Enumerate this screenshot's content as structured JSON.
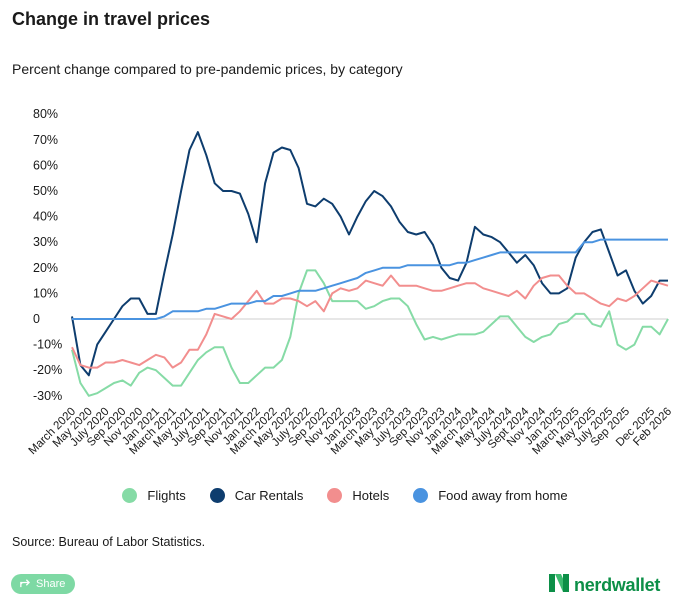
{
  "header": {
    "title": "Change in travel prices",
    "subtitle": "Percent change compared to pre-pandemic prices, by category"
  },
  "footer": {
    "source": "Source: Bureau of Labor Statistics.",
    "share_label": "Share",
    "share_icon": "share-icon",
    "logo_text": "nerdwallet",
    "logo_color": "#0c8f47"
  },
  "chart_data": {
    "type": "line",
    "ylim": [
      -30,
      80
    ],
    "y_ticks": [
      "80%",
      "70%",
      "60%",
      "50%",
      "40%",
      "30%",
      "20%",
      "10%",
      "0",
      "-10%",
      "-20%",
      "-30%"
    ],
    "y_tick_values": [
      80,
      70,
      60,
      50,
      40,
      30,
      20,
      10,
      0,
      -10,
      -20,
      -30
    ],
    "x_tick_labels": [
      "March 2020",
      "May 2020",
      "July 2020",
      "Sep 2020",
      "Nov 2020",
      "Jan 2021",
      "March 2021",
      "May 2021",
      "July 2021",
      "Sep 2021",
      "Nov 2021",
      "Jan 2022",
      "March 2022",
      "May 2022",
      "July 2022",
      "Sep 2022",
      "Nov 2022",
      "Jan 2023",
      "March 2023",
      "May 2023",
      "July 2023",
      "Sep 2023",
      "Nov 2023",
      "Jan 2024",
      "March 2024",
      "May 2024",
      "July 2024",
      "Sept 2024",
      "Nov 2024",
      "Jan 2025",
      "March 2025",
      "May 2025",
      "July 2025",
      "Sep 2025",
      "Dec 2025",
      "Feb 2026"
    ],
    "x_tick_index": [
      0,
      2,
      4,
      6,
      8,
      10,
      12,
      14,
      16,
      18,
      20,
      22,
      24,
      26,
      28,
      30,
      32,
      34,
      36,
      38,
      40,
      42,
      44,
      46,
      48,
      50,
      52,
      54,
      56,
      58,
      60,
      62,
      64,
      66,
      69,
      71
    ],
    "x_count": 72,
    "grid": false,
    "legend_position": "bottom",
    "series": [
      {
        "name": "Flights",
        "color": "#86dba6",
        "values": [
          -12,
          -25,
          -30,
          -29,
          -27,
          -25,
          -24,
          -26,
          -21,
          -19,
          -20,
          -23,
          -26,
          -26,
          -21,
          -16,
          -13,
          -11,
          -11,
          -19,
          -25,
          -25,
          -22,
          -19,
          -19,
          -16,
          -7,
          10,
          19,
          19,
          14,
          7,
          7,
          7,
          7,
          4,
          5,
          7,
          8,
          8,
          5,
          -2,
          -8,
          -7,
          -8,
          -7,
          -6,
          -6,
          -6,
          -5,
          -2,
          1,
          1,
          -3,
          -7,
          -9,
          -7,
          -6,
          -2,
          -1,
          2,
          2,
          -2,
          -3,
          3,
          -10,
          -12,
          -10,
          -3,
          -3,
          -6,
          0
        ]
      },
      {
        "name": "Car Rentals",
        "color": "#0e3d6e",
        "values": [
          1,
          -18,
          -22,
          -10,
          -5,
          0,
          5,
          8,
          8,
          2,
          2,
          18,
          33,
          50,
          66,
          73,
          64,
          53,
          50,
          50,
          49,
          41,
          30,
          53,
          65,
          67,
          66,
          59,
          45,
          44,
          47,
          45,
          40,
          33,
          40,
          46,
          50,
          48,
          44,
          38,
          34,
          33,
          34,
          29,
          20,
          16,
          15,
          22,
          36,
          33,
          32,
          30,
          26,
          22,
          25,
          21,
          14,
          10,
          10,
          12,
          24,
          30,
          34,
          35,
          26,
          17,
          19,
          11,
          6,
          9,
          15,
          15
        ]
      },
      {
        "name": "Hotels",
        "color": "#f28e8e",
        "values": [
          -11,
          -18,
          -19,
          -19,
          -17,
          -17,
          -16,
          -17,
          -18,
          -16,
          -14,
          -15,
          -19,
          -17,
          -12,
          -12,
          -6,
          2,
          1,
          0,
          3,
          7,
          11,
          6,
          6,
          8,
          8,
          7,
          5,
          7,
          3,
          10,
          12,
          11,
          12,
          15,
          14,
          13,
          17,
          13,
          13,
          13,
          12,
          11,
          11,
          12,
          13,
          14,
          14,
          12,
          11,
          10,
          9,
          11,
          8,
          13,
          16,
          17,
          17,
          13,
          10,
          10,
          8,
          6,
          5,
          8,
          7,
          9,
          12,
          15,
          14,
          13
        ]
      },
      {
        "name": "Food away from home",
        "color": "#4a93e0",
        "values": [
          0,
          0,
          0,
          0,
          0,
          0,
          0,
          0,
          0,
          0,
          0,
          1,
          3,
          3,
          3,
          3,
          4,
          4,
          5,
          6,
          6,
          6,
          7,
          7,
          9,
          9,
          10,
          11,
          11,
          11,
          12,
          13,
          14,
          15,
          16,
          18,
          19,
          20,
          20,
          20,
          21,
          21,
          21,
          21,
          21,
          21,
          22,
          22,
          23,
          24,
          25,
          26,
          26,
          26,
          26,
          26,
          26,
          26,
          26,
          26,
          26,
          30,
          30,
          31,
          31,
          31,
          31,
          31,
          31,
          31,
          31,
          31
        ]
      }
    ]
  }
}
